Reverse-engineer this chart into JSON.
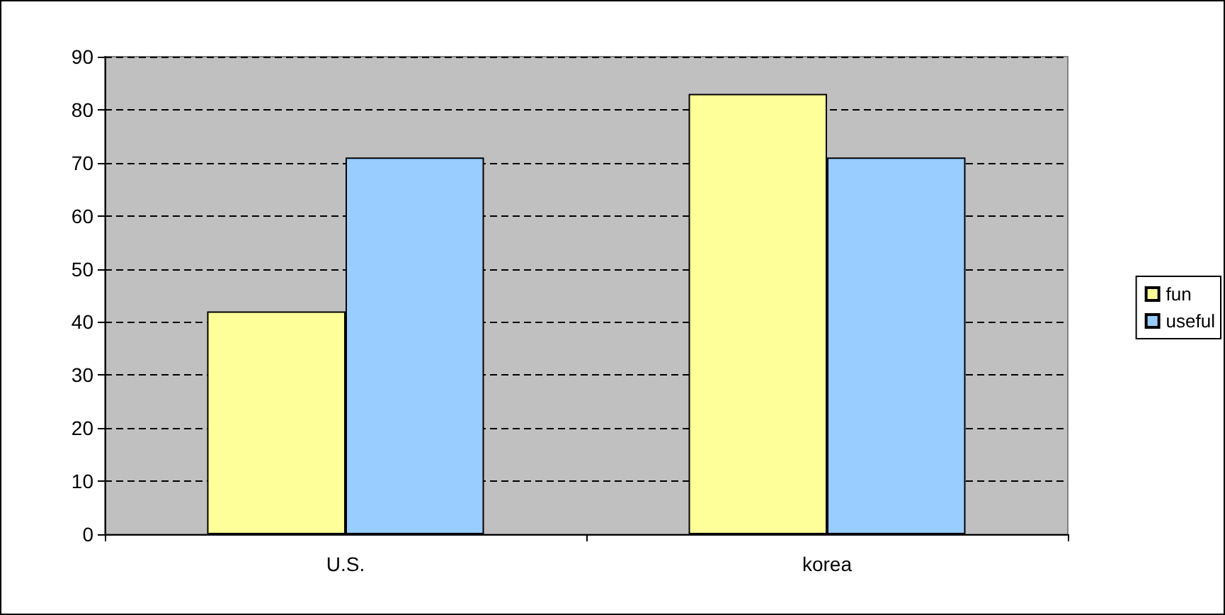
{
  "chart_data": {
    "type": "bar",
    "categories": [
      "U.S.",
      "korea"
    ],
    "series": [
      {
        "name": "fun",
        "color": "#ffff99",
        "values": [
          42,
          83
        ]
      },
      {
        "name": "useful",
        "color": "#99ccff",
        "values": [
          71,
          71
        ]
      }
    ],
    "ylim": [
      0,
      90
    ],
    "yticks": [
      0,
      10,
      20,
      30,
      40,
      50,
      60,
      70,
      80,
      90
    ],
    "grid": "y",
    "legend": "right"
  }
}
